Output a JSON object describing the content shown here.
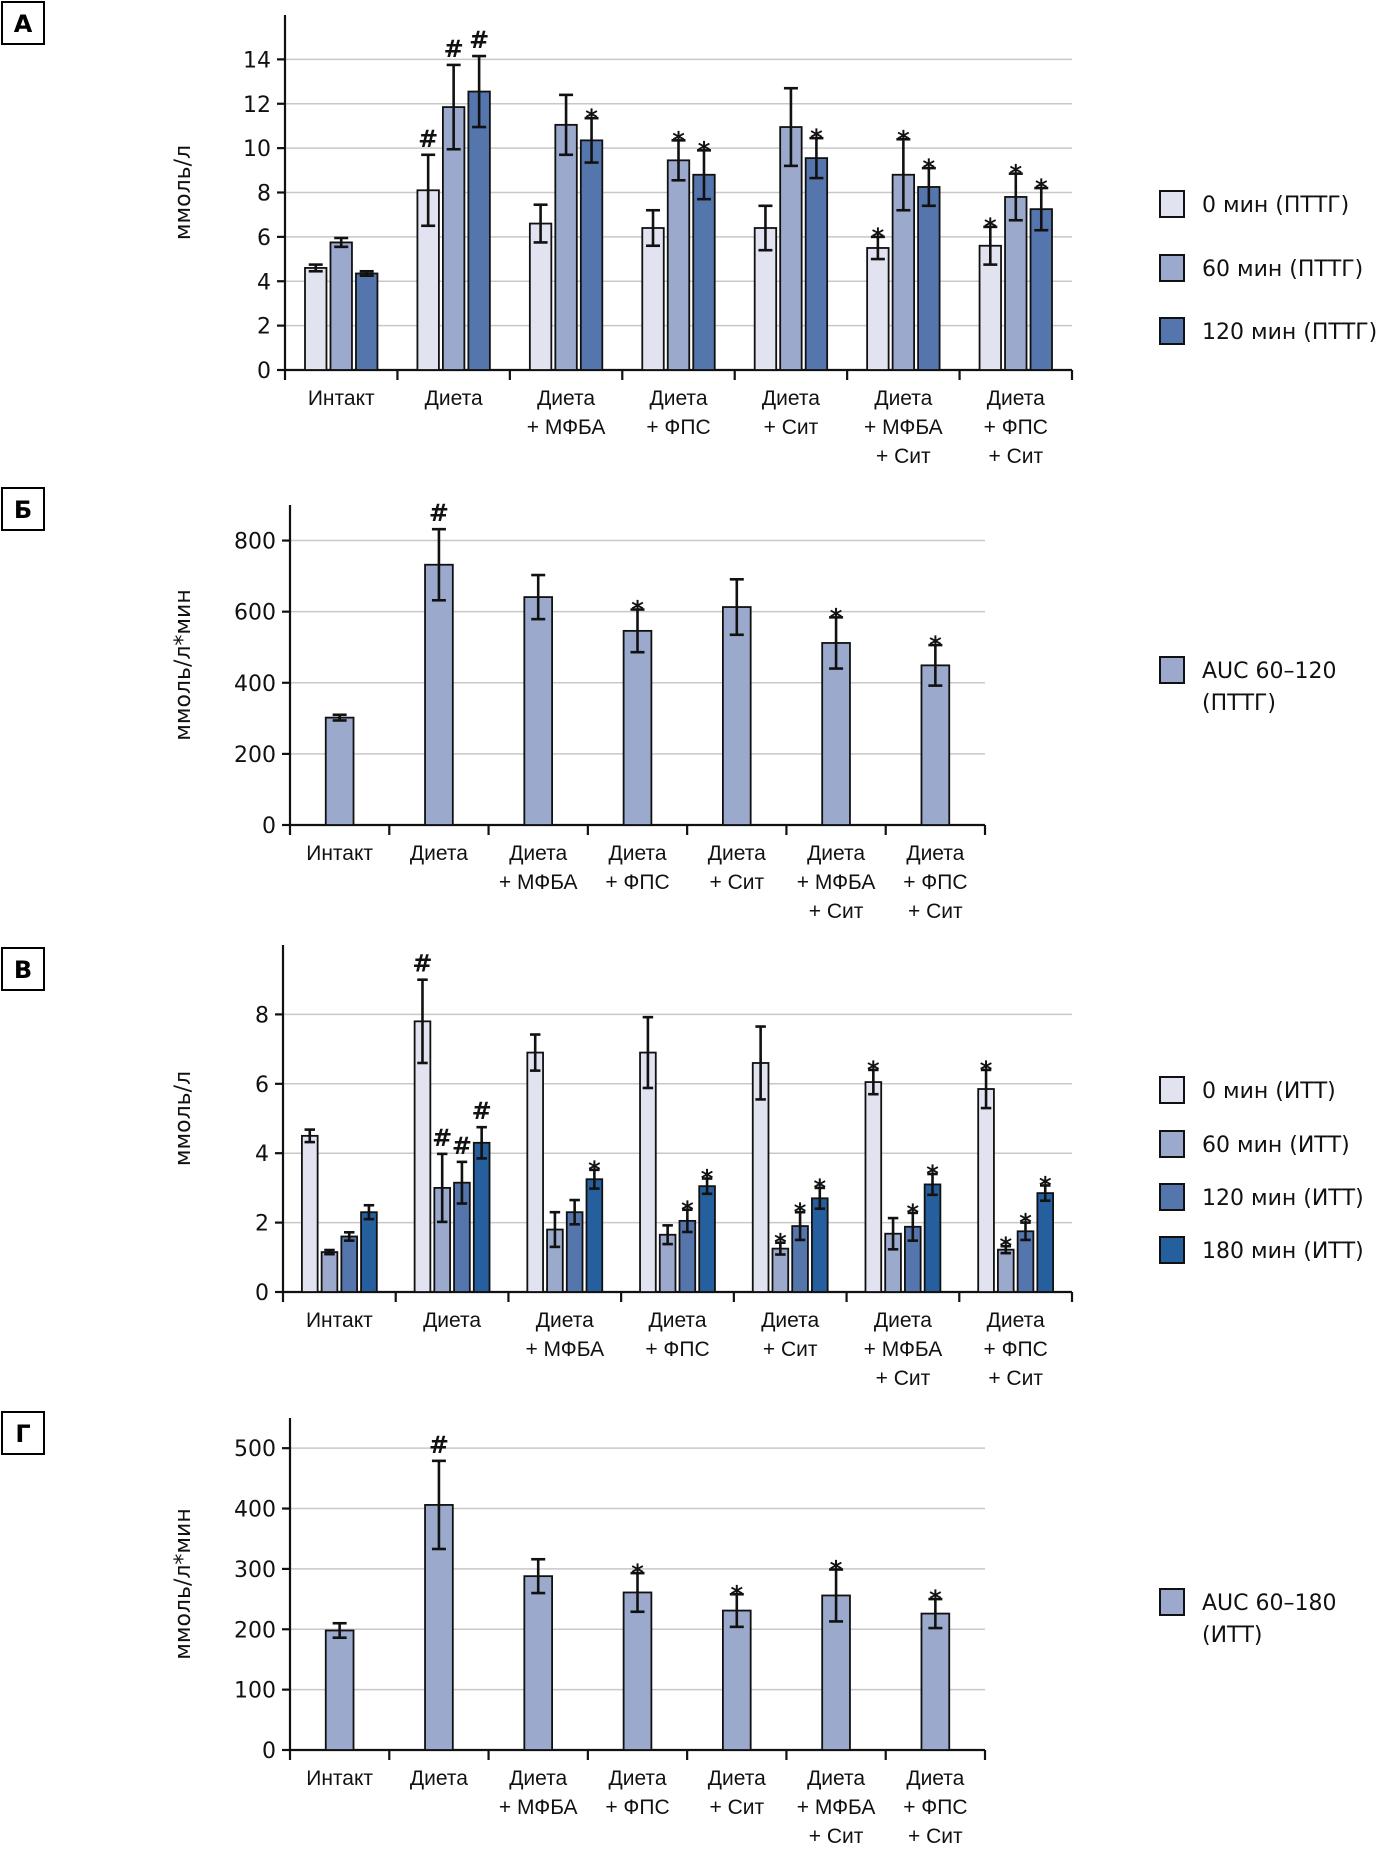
{
  "chart_data": [
    {
      "panel": "А",
      "type": "bar",
      "ylabel": "ммоль/л",
      "ylim": [
        0,
        16
      ],
      "yticks": [
        0,
        2,
        4,
        6,
        8,
        10,
        12,
        14
      ],
      "grid": true,
      "legend_position": "right",
      "categories": [
        [
          "Интакт"
        ],
        [
          "Диета"
        ],
        [
          "Диета",
          "+ МФБА"
        ],
        [
          "Диета",
          "+ ФПС"
        ],
        [
          "Диета",
          "+ Сит"
        ],
        [
          "Диета",
          "+ МФБА",
          "+ Сит"
        ],
        [
          "Диета",
          "+ ФПС",
          "+ Сит"
        ]
      ],
      "series": [
        {
          "name": "0 мин (ПТТГ)",
          "color": "#e1e3f0",
          "values": [
            4.6,
            8.1,
            6.6,
            6.4,
            6.4,
            5.5,
            5.6
          ],
          "errors": [
            0.15,
            1.6,
            0.85,
            0.8,
            1.0,
            0.5,
            0.85
          ],
          "marks": [
            "",
            "#",
            "",
            "",
            "",
            "*",
            "*"
          ]
        },
        {
          "name": "60 мин (ПТТГ)",
          "color": "#9aa9cc",
          "values": [
            5.75,
            11.85,
            11.05,
            9.45,
            10.95,
            8.8,
            7.8
          ],
          "errors": [
            0.2,
            1.9,
            1.35,
            0.9,
            1.75,
            1.6,
            1.05
          ],
          "marks": [
            "",
            "#",
            "",
            "*",
            "",
            "*",
            "*"
          ]
        },
        {
          "name": "120 мин (ПТТГ)",
          "color": "#5576ad",
          "values": [
            4.35,
            12.55,
            10.35,
            8.8,
            9.55,
            8.25,
            7.25
          ],
          "errors": [
            0.1,
            1.6,
            1.0,
            1.1,
            0.9,
            0.85,
            0.95
          ],
          "marks": [
            "",
            "#",
            "*",
            "*",
            "*",
            "*",
            "*"
          ]
        }
      ]
    },
    {
      "panel": "Б",
      "type": "bar",
      "ylabel": "ммоль/л*мин",
      "ylim": [
        0,
        900
      ],
      "yticks": [
        0,
        200,
        400,
        600,
        800
      ],
      "grid": true,
      "legend_position": "right",
      "categories": [
        [
          "Интакт"
        ],
        [
          "Диета"
        ],
        [
          "Диета",
          "+ МФБА"
        ],
        [
          "Диета",
          "+ ФПС"
        ],
        [
          "Диета",
          "+ Сит"
        ],
        [
          "Диета",
          "+ МФБА",
          "+ Сит"
        ],
        [
          "Диета",
          "+ ФПС",
          "+ Сит"
        ]
      ],
      "series": [
        {
          "name": "AUC 60–120 (ПТТГ)",
          "legend_lines": [
            "AUC 60–120",
            "(ПТТГ)"
          ],
          "color": "#9aa9cc",
          "values": [
            302,
            732,
            641,
            546,
            613,
            512,
            449
          ],
          "errors": [
            8,
            100,
            62,
            60,
            78,
            72,
            57
          ],
          "marks": [
            "",
            "#",
            "",
            "*",
            "",
            "*",
            "*"
          ]
        }
      ]
    },
    {
      "panel": "В",
      "type": "bar",
      "ylabel": "ммоль/л",
      "ylim": [
        0,
        10
      ],
      "yticks": [
        0,
        2,
        4,
        6,
        8
      ],
      "grid": true,
      "legend_position": "right",
      "categories": [
        [
          "Интакт"
        ],
        [
          "Диета"
        ],
        [
          "Диета",
          "+ МФБА"
        ],
        [
          "Диета",
          "+ ФПС"
        ],
        [
          "Диета",
          "+ Сит"
        ],
        [
          "Диета",
          "+ МФБА",
          "+ Сит"
        ],
        [
          "Диета",
          "+ ФПС",
          "+ Сит"
        ]
      ],
      "series": [
        {
          "name": "0 мин (ИТТ)",
          "color": "#e1e3f0",
          "values": [
            4.5,
            7.8,
            6.9,
            6.9,
            6.6,
            6.05,
            5.85
          ],
          "errors": [
            0.18,
            1.2,
            0.52,
            1.02,
            1.05,
            0.35,
            0.55
          ],
          "marks": [
            "",
            "#",
            "",
            "",
            "",
            "*",
            "*"
          ]
        },
        {
          "name": "60 мин (ИТТ)",
          "color": "#9aa9cc",
          "values": [
            1.15,
            3.0,
            1.8,
            1.65,
            1.25,
            1.68,
            1.22
          ],
          "errors": [
            0.06,
            0.98,
            0.5,
            0.27,
            0.17,
            0.45,
            0.1
          ],
          "marks": [
            "",
            "#",
            "",
            "",
            "*",
            "",
            "*"
          ]
        },
        {
          "name": "120 мин (ИТТ)",
          "color": "#5576ad",
          "values": [
            1.6,
            3.15,
            2.3,
            2.05,
            1.9,
            1.88,
            1.75
          ],
          "errors": [
            0.12,
            0.6,
            0.35,
            0.32,
            0.4,
            0.4,
            0.25
          ],
          "marks": [
            "",
            "#",
            "",
            "*",
            "*",
            "*",
            "*"
          ]
        },
        {
          "name": "180 мин (ИТТ)",
          "color": "#255f9e",
          "values": [
            2.3,
            4.3,
            3.25,
            3.05,
            2.7,
            3.1,
            2.85
          ],
          "errors": [
            0.2,
            0.45,
            0.27,
            0.22,
            0.3,
            0.3,
            0.22
          ],
          "marks": [
            "",
            "#",
            "*",
            "*",
            "*",
            "*",
            "*"
          ]
        }
      ]
    },
    {
      "panel": "Г",
      "type": "bar",
      "ylabel": "ммоль/л*мин",
      "ylim": [
        0,
        550
      ],
      "yticks": [
        0,
        100,
        200,
        300,
        400,
        500
      ],
      "grid": true,
      "legend_position": "right",
      "categories": [
        [
          "Интакт"
        ],
        [
          "Диета"
        ],
        [
          "Диета",
          "+ МФБА"
        ],
        [
          "Диета",
          "+ ФПС"
        ],
        [
          "Диета",
          "+ Сит"
        ],
        [
          "Диета",
          "+ МФБА",
          "+ Сит"
        ],
        [
          "Диета",
          "+ ФПС",
          "+ Сит"
        ]
      ],
      "series": [
        {
          "name": "AUC 60–180 (ИТТ)",
          "legend_lines": [
            "AUC 60–180",
            "(ИТТ)"
          ],
          "color": "#9aa9cc",
          "values": [
            198,
            406,
            288,
            261,
            231,
            256,
            226
          ],
          "errors": [
            12,
            73,
            28,
            32,
            27,
            43,
            24
          ],
          "marks": [
            "",
            "#",
            "",
            "*",
            "*",
            "*",
            "*"
          ]
        }
      ]
    }
  ]
}
